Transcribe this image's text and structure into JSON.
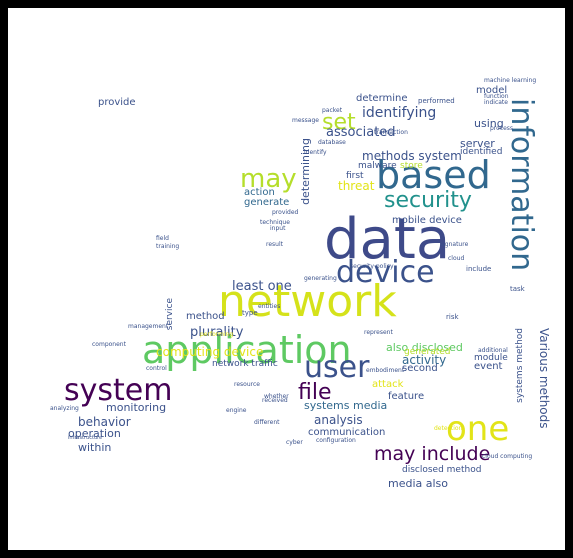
{
  "palette": {
    "dark_purple": "#440154",
    "indigo": "#3b528b",
    "slate": "#31688e",
    "teal": "#21918c",
    "green": "#5ec962",
    "lime": "#b5de2b",
    "yellow": "#e2e418"
  },
  "words": {
    "network": "network",
    "data": "data",
    "application": "application",
    "based": "based",
    "information": "information",
    "device": "device",
    "user": "user",
    "one": "one",
    "system": "system",
    "security": "security",
    "may": "may",
    "file": "file",
    "may_include": "may include",
    "set": "set",
    "various_methods": "Various methods",
    "least_one": "least one",
    "identifying": "identifying",
    "associated": "associated",
    "methods_system": "methods system",
    "determining": "determining",
    "plurality": "plurality",
    "computing_device": "computing device",
    "behavior": "behavior",
    "monitoring": "monitoring",
    "systems_media": "systems media",
    "analysis": "analysis",
    "communication": "communication",
    "also_disclosed": "also disclosed",
    "activity": "activity",
    "attack": "attack",
    "mobile_device": "mobile device",
    "threat": "threat",
    "server": "server",
    "generate": "generate",
    "operation": "operation",
    "within": "within",
    "provide": "provide",
    "model": "model",
    "using": "using",
    "determine": "determine",
    "method": "method",
    "action": "action",
    "second": "second",
    "event": "event",
    "module": "module",
    "feature": "feature",
    "media_also": "media also",
    "disclosed_method": "disclosed method",
    "network_traffic": "network traffic",
    "generated": "generated",
    "store": "store",
    "first": "first",
    "identified": "identified",
    "malware": "malware",
    "service": "service",
    "systems_method": "systems method",
    "performed": "performed",
    "risk": "risk",
    "include": "include",
    "task": "task",
    "machine_learning": "machine learning",
    "security_policy": "security policy",
    "cloud": "cloud",
    "detection": "detection",
    "transaction": "transaction",
    "message": "message",
    "identify": "identify",
    "resource": "resource",
    "analyzing": "analyzing",
    "management": "management",
    "control": "control",
    "field": "field",
    "training": "training",
    "result": "result",
    "input": "input",
    "technique": "technique",
    "database": "database",
    "configuration": "configuration",
    "cyber": "cyber",
    "process": "process",
    "entities": "entities",
    "packet": "packet",
    "generating": "generating",
    "represent": "represent",
    "additional": "additional",
    "indicate": "indicate",
    "function": "function",
    "component": "component",
    "received": "received",
    "engine": "engine",
    "type": "type",
    "embodiment": "embodiment",
    "provided": "provided",
    "signature": "signature",
    "whether": "whether",
    "different": "different",
    "cloud_computing": "cloud computing",
    "performing": "performing",
    "infrastructure": "infrastructure"
  }
}
